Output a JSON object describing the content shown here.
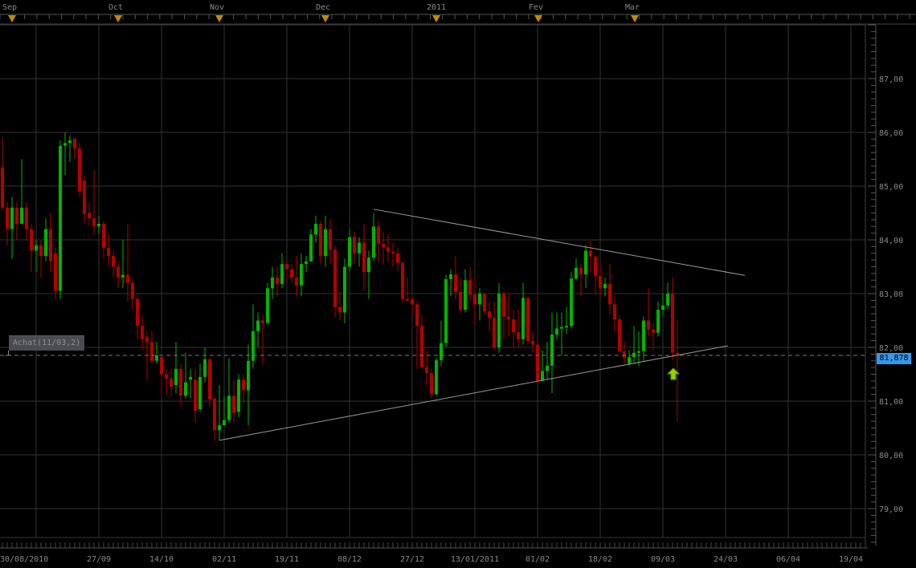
{
  "chart_data": {
    "type": "candlestick",
    "title": "",
    "y_ticks": [
      "87,00",
      "86,00",
      "85,00",
      "84,00",
      "83,00",
      "82,00",
      "81,00",
      "80,00",
      "79,00"
    ],
    "y_tick_values": [
      87,
      86,
      85,
      84,
      83,
      82,
      81,
      80,
      79
    ],
    "ylim": [
      78.5,
      88
    ],
    "x_tick_labels": [
      "30/08/2010",
      "27/09",
      "14/10",
      "02/11",
      "19/11",
      "08/12",
      "27/12",
      "13/01/2011",
      "01/02",
      "18/02",
      "09/03",
      "24/03",
      "06/04",
      "19/04"
    ],
    "month_labels": [
      "Sep",
      "Oct",
      "Nov",
      "Dec",
      "2011",
      "Fev",
      "Mar"
    ],
    "grid": true,
    "colors": {
      "up": "#00b400",
      "down": "#b40000",
      "grid": "#333333",
      "trendline": "#9a9a9a",
      "last_price_bg": "#3399ee",
      "signal_arrow": "#8fd400"
    },
    "last_price": 81.878,
    "last_price_label": "81,878",
    "order_label": "Achat(11/03,2)",
    "order_price": 81.85,
    "trendlines": [
      {
        "name": "resistance",
        "from": [
          77,
          84.57
        ],
        "to": [
          154,
          83.34
        ]
      },
      {
        "name": "support",
        "from": [
          45,
          80.27
        ],
        "to": [
          150.5,
          82.03
        ]
      }
    ],
    "candles_ohlc": [
      [
        85.35,
        85.9,
        84.55,
        84.6
      ],
      [
        84.6,
        84.7,
        83.9,
        84.2
      ],
      [
        84.2,
        84.8,
        83.65,
        84.6
      ],
      [
        84.6,
        84.7,
        84.0,
        84.3
      ],
      [
        84.3,
        85.5,
        84.3,
        84.6
      ],
      [
        84.6,
        84.7,
        84.0,
        84.2
      ],
      [
        84.2,
        84.3,
        83.4,
        83.8
      ],
      [
        83.8,
        84.0,
        83.4,
        83.9
      ],
      [
        83.9,
        84.0,
        83.3,
        83.7
      ],
      [
        83.7,
        84.4,
        83.6,
        84.2
      ],
      [
        84.2,
        84.5,
        83.4,
        83.6
      ],
      [
        83.75,
        83.85,
        82.9,
        83.05
      ],
      [
        83.05,
        85.85,
        82.9,
        85.75
      ],
      [
        85.75,
        86.0,
        85.2,
        85.8
      ],
      [
        85.8,
        85.95,
        85.45,
        85.85
      ],
      [
        85.88,
        85.9,
        85.5,
        85.7
      ],
      [
        85.7,
        85.8,
        84.8,
        84.9
      ],
      [
        85.1,
        85.2,
        84.3,
        84.48
      ],
      [
        84.5,
        84.7,
        84.25,
        84.4
      ],
      [
        84.4,
        85.3,
        84.1,
        84.25
      ],
      [
        84.25,
        84.45,
        84.1,
        84.3
      ],
      [
        84.3,
        84.35,
        83.65,
        83.85
      ],
      [
        83.85,
        84.1,
        83.5,
        83.7
      ],
      [
        83.7,
        83.8,
        83.3,
        83.5
      ],
      [
        83.5,
        83.6,
        83.1,
        83.3
      ],
      [
        83.3,
        84.0,
        83.1,
        83.35
      ],
      [
        83.35,
        84.3,
        82.85,
        83.2
      ],
      [
        83.2,
        83.3,
        82.7,
        82.9
      ],
      [
        82.9,
        83.0,
        82.15,
        82.4
      ],
      [
        82.4,
        82.6,
        81.95,
        82.15
      ],
      [
        82.2,
        82.3,
        81.4,
        82.1
      ],
      [
        82.1,
        82.3,
        81.7,
        81.75
      ],
      [
        81.75,
        82.1,
        81.7,
        81.85
      ],
      [
        81.82,
        81.85,
        81.1,
        81.5
      ],
      [
        81.5,
        81.6,
        81.1,
        81.42
      ],
      [
        81.42,
        81.6,
        81.1,
        81.27
      ],
      [
        81.3,
        82.1,
        81.15,
        81.6
      ],
      [
        81.6,
        81.7,
        80.9,
        81.1
      ],
      [
        81.1,
        81.9,
        81.05,
        81.35
      ],
      [
        81.4,
        81.6,
        81.05,
        81.45
      ],
      [
        81.4,
        81.6,
        80.6,
        80.82
      ],
      [
        80.85,
        81.7,
        80.8,
        81.45
      ],
      [
        81.45,
        82.0,
        81.35,
        81.78
      ],
      [
        81.78,
        81.8,
        80.9,
        81.03
      ],
      [
        81.05,
        81.1,
        80.27,
        80.46
      ],
      [
        80.46,
        81.3,
        80.27,
        80.55
      ],
      [
        80.55,
        81.1,
        80.55,
        80.65
      ],
      [
        80.65,
        81.8,
        80.6,
        81.1
      ],
      [
        81.1,
        81.4,
        80.6,
        80.78
      ],
      [
        80.8,
        81.5,
        80.7,
        81.4
      ],
      [
        81.4,
        81.5,
        80.95,
        81.2
      ],
      [
        81.2,
        82.05,
        80.55,
        81.75
      ],
      [
        81.75,
        82.8,
        81.6,
        82.3
      ],
      [
        82.3,
        82.65,
        82.0,
        82.5
      ],
      [
        82.5,
        82.6,
        81.7,
        82.45
      ],
      [
        82.45,
        83.2,
        82.45,
        83.1
      ],
      [
        83.1,
        83.5,
        82.9,
        83.3
      ],
      [
        83.3,
        83.5,
        82.95,
        83.18
      ],
      [
        83.18,
        83.75,
        83.1,
        83.55
      ],
      [
        83.55,
        83.65,
        83.2,
        83.45
      ],
      [
        83.45,
        83.55,
        83.2,
        83.3
      ],
      [
        83.3,
        83.7,
        82.95,
        83.15
      ],
      [
        83.15,
        83.75,
        82.95,
        83.55
      ],
      [
        83.55,
        83.7,
        83.4,
        83.6
      ],
      [
        83.6,
        84.2,
        83.6,
        84.1
      ],
      [
        84.1,
        84.45,
        83.95,
        84.3
      ],
      [
        84.3,
        84.35,
        83.55,
        83.7
      ],
      [
        83.7,
        84.45,
        83.5,
        84.2
      ],
      [
        84.2,
        84.4,
        83.55,
        83.82
      ],
      [
        83.82,
        83.9,
        82.55,
        82.75
      ],
      [
        82.75,
        83.05,
        82.5,
        82.65
      ],
      [
        82.65,
        83.65,
        82.45,
        83.5
      ],
      [
        83.5,
        84.2,
        83.4,
        84.05
      ],
      [
        84.05,
        84.15,
        83.55,
        83.75
      ],
      [
        83.75,
        84.05,
        83.5,
        83.95
      ],
      [
        83.95,
        84.3,
        83.05,
        83.4
      ],
      [
        83.4,
        83.8,
        82.9,
        83.67
      ],
      [
        83.67,
        84.5,
        83.6,
        84.25
      ],
      [
        84.25,
        84.35,
        83.6,
        83.93
      ],
      [
        83.93,
        84.15,
        83.55,
        83.86
      ],
      [
        83.86,
        84.1,
        83.6,
        83.78
      ],
      [
        83.78,
        83.95,
        83.5,
        83.75
      ],
      [
        83.75,
        83.85,
        83.4,
        83.57
      ],
      [
        83.57,
        83.6,
        82.85,
        82.9
      ],
      [
        82.9,
        83.3,
        82.85,
        82.88
      ],
      [
        82.9,
        82.95,
        82.6,
        82.8
      ],
      [
        82.8,
        82.85,
        81.6,
        82.4
      ],
      [
        82.4,
        82.6,
        81.6,
        81.63
      ],
      [
        81.63,
        81.95,
        81.3,
        81.52
      ],
      [
        81.52,
        81.6,
        81.05,
        81.13
      ],
      [
        81.13,
        81.8,
        81.1,
        81.76
      ],
      [
        81.76,
        82.5,
        81.65,
        82.08
      ],
      [
        82.08,
        83.35,
        82.0,
        83.27
      ],
      [
        83.27,
        83.45,
        82.95,
        83.36
      ],
      [
        83.36,
        83.7,
        82.9,
        83.03
      ],
      [
        83.03,
        83.3,
        82.65,
        82.7
      ],
      [
        82.7,
        83.45,
        82.65,
        83.25
      ],
      [
        83.25,
        83.5,
        82.85,
        82.98
      ],
      [
        82.98,
        83.3,
        82.4,
        82.8
      ],
      [
        82.8,
        83.1,
        82.5,
        83.0
      ],
      [
        83.0,
        83.0,
        82.6,
        82.67
      ],
      [
        82.67,
        82.85,
        82.3,
        82.55
      ],
      [
        82.55,
        82.85,
        81.95,
        82.0
      ],
      [
        82.0,
        83.2,
        81.9,
        83.0
      ],
      [
        83.0,
        83.05,
        82.15,
        82.57
      ],
      [
        82.57,
        83.0,
        82.2,
        82.52
      ],
      [
        82.52,
        82.7,
        82.0,
        82.28
      ],
      [
        82.28,
        82.7,
        82.0,
        82.15
      ],
      [
        82.15,
        83.2,
        82.05,
        82.92
      ],
      [
        82.92,
        82.95,
        82.05,
        82.12
      ],
      [
        82.12,
        82.3,
        81.9,
        82.05
      ],
      [
        82.05,
        82.1,
        81.35,
        81.37
      ],
      [
        81.38,
        81.95,
        81.35,
        81.56
      ],
      [
        81.56,
        82.1,
        81.4,
        81.66
      ],
      [
        81.66,
        82.65,
        81.15,
        82.24
      ],
      [
        82.24,
        82.65,
        82.15,
        82.35
      ],
      [
        82.35,
        82.65,
        81.85,
        82.38
      ],
      [
        82.38,
        82.75,
        82.25,
        82.4
      ],
      [
        82.4,
        83.4,
        82.35,
        83.28
      ],
      [
        83.28,
        83.65,
        83.25,
        83.48
      ],
      [
        83.48,
        83.55,
        82.95,
        83.36
      ],
      [
        83.36,
        83.9,
        83.1,
        83.8
      ],
      [
        83.8,
        83.98,
        83.4,
        83.69
      ],
      [
        83.69,
        83.72,
        83.0,
        83.33
      ],
      [
        83.33,
        83.55,
        82.95,
        83.1
      ],
      [
        83.1,
        83.3,
        82.95,
        83.18
      ],
      [
        83.18,
        83.55,
        82.6,
        82.8
      ],
      [
        82.8,
        82.95,
        82.3,
        82.52
      ],
      [
        82.52,
        82.6,
        81.9,
        81.93
      ],
      [
        81.93,
        82.1,
        81.7,
        81.8
      ],
      [
        81.7,
        81.95,
        81.65,
        81.82
      ],
      [
        81.82,
        82.4,
        81.7,
        81.9
      ],
      [
        81.9,
        82.3,
        81.65,
        81.93
      ],
      [
        81.93,
        82.57,
        81.75,
        82.5
      ],
      [
        82.5,
        83.1,
        82.2,
        82.33
      ],
      [
        82.33,
        82.45,
        81.95,
        82.27
      ],
      [
        82.27,
        82.85,
        82.2,
        82.7
      ],
      [
        82.7,
        83.0,
        82.6,
        82.78
      ],
      [
        82.78,
        83.2,
        82.7,
        83.0
      ],
      [
        83.0,
        83.3,
        81.75,
        81.9
      ],
      [
        81.9,
        82.5,
        80.63,
        81.87
      ]
    ]
  }
}
